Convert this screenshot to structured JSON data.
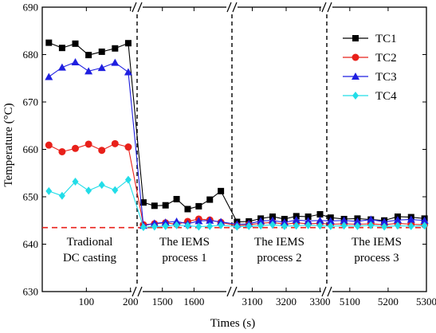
{
  "chart_data": {
    "type": "line",
    "xlabel": "Times (s)",
    "ylabel": "Temperature (°C)",
    "ylim": [
      630,
      690
    ],
    "yticks": [
      630,
      640,
      650,
      660,
      670,
      680,
      690
    ],
    "broken_axis": true,
    "grid": false,
    "legend": {
      "position": "top-right"
    },
    "reference_line": {
      "y": 643.5,
      "style": "dashed",
      "color": "#e8201a"
    },
    "colors": {
      "TC1": "#000000",
      "TC2": "#e8201a",
      "TC3": "#1f1fe0",
      "TC4": "#22dde8"
    },
    "markers": {
      "TC1": "square",
      "TC2": "circle",
      "TC3": "triangle",
      "TC4": "diamond"
    },
    "segments": [
      {
        "annotation": [
          "Tradional",
          "DC casting"
        ],
        "xlim": [
          0,
          215
        ],
        "xticks": [
          100,
          200
        ],
        "x": [
          15,
          45,
          75,
          105,
          135,
          165,
          195
        ],
        "series": [
          {
            "name": "TC1",
            "values": [
              682.5,
              681.4,
              682.3,
              679.9,
              680.6,
              681.3,
              682.4
            ]
          },
          {
            "name": "TC2",
            "values": [
              660.9,
              659.5,
              660.2,
              661.1,
              659.8,
              661.2,
              660.5
            ]
          },
          {
            "name": "TC3",
            "values": [
              675.3,
              677.3,
              678.4,
              676.5,
              677.2,
              678.3,
              676.3
            ]
          },
          {
            "name": "TC4",
            "values": [
              651.2,
              650.2,
              653.2,
              651.3,
              652.5,
              651.4,
              653.6
            ]
          }
        ]
      },
      {
        "annotation": [
          "The IEMS",
          "process 1"
        ],
        "xlim": [
          1420,
          1720
        ],
        "xticks": [
          1500,
          1600
        ],
        "x": [
          1440,
          1475,
          1510,
          1545,
          1580,
          1615,
          1650,
          1685
        ],
        "series": [
          {
            "name": "TC1",
            "values": [
              648.8,
              648.1,
              648.2,
              649.5,
              647.4,
              648.0,
              649.4,
              651.2
            ]
          },
          {
            "name": "TC2",
            "values": [
              644.1,
              644.3,
              644.5,
              644.2,
              644.8,
              645.3,
              645.1,
              644.6
            ]
          },
          {
            "name": "TC3",
            "values": [
              643.9,
              644.4,
              644.6,
              644.8,
              644.3,
              644.9,
              645.0,
              644.7
            ]
          },
          {
            "name": "TC4",
            "values": [
              643.6,
              643.7,
              643.8,
              644.0,
              643.9,
              643.7,
              643.8,
              644.0
            ]
          }
        ]
      },
      {
        "annotation": [
          "The IEMS",
          "process 2"
        ],
        "xlim": [
          3040,
          3320
        ],
        "xticks": [
          3100,
          3200,
          3300
        ],
        "x": [
          3055,
          3090,
          3125,
          3160,
          3195,
          3230,
          3265,
          3300
        ],
        "series": [
          {
            "name": "TC1",
            "values": [
              644.7,
              644.8,
              645.4,
              645.8,
              645.3,
              645.9,
              645.8,
              646.3
            ]
          },
          {
            "name": "TC2",
            "values": [
              643.9,
              644.1,
              644.4,
              644.6,
              644.2,
              644.5,
              644.3,
              644.4
            ]
          },
          {
            "name": "TC3",
            "values": [
              644.2,
              644.3,
              644.9,
              645.0,
              644.6,
              645.1,
              644.9,
              645.0
            ]
          },
          {
            "name": "TC4",
            "values": [
              643.7,
              643.8,
              643.9,
              644.1,
              643.8,
              643.9,
              644.0,
              643.9
            ]
          }
        ]
      },
      {
        "annotation": [
          "The IEMS",
          "process 3"
        ],
        "xlim": [
          5040,
          5300
        ],
        "xticks": [
          5100,
          5200,
          5300
        ],
        "x": [
          5050,
          5085,
          5120,
          5155,
          5190,
          5225,
          5260,
          5295
        ],
        "series": [
          {
            "name": "TC1",
            "values": [
              645.6,
              645.3,
              645.4,
              645.2,
              645.0,
              645.8,
              645.7,
              645.4
            ]
          },
          {
            "name": "TC2",
            "values": [
              644.2,
              644.3,
              644.2,
              644.3,
              644.1,
              644.4,
              644.2,
              644.1
            ]
          },
          {
            "name": "TC3",
            "values": [
              644.9,
              645.0,
              644.8,
              645.2,
              644.7,
              645.1,
              645.2,
              645.0
            ]
          },
          {
            "name": "TC4",
            "values": [
              643.8,
              643.9,
              643.8,
              644.0,
              643.7,
              643.9,
              643.8,
              643.9
            ]
          }
        ]
      }
    ]
  }
}
